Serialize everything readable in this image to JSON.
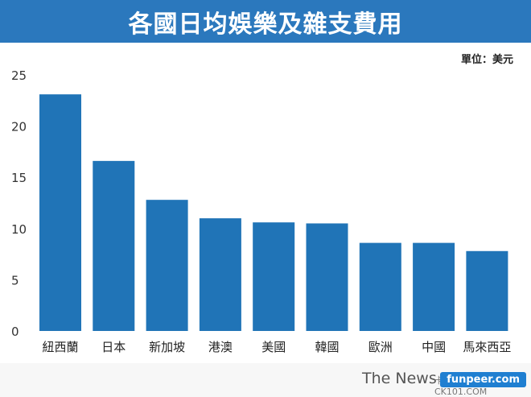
{
  "header": {
    "title": "各國日均娛樂及雜支費用"
  },
  "unit_label": "單位：美元",
  "footer": {
    "brand": "The News",
    "source": "卡提諾論壇 CK101.COM",
    "watermark": "funpeer.com"
  },
  "chart_data": {
    "type": "bar",
    "title": "各國日均娛樂及雜支費用",
    "xlabel": "",
    "ylabel": "",
    "ylim": [
      0,
      25
    ],
    "yticks": [
      0,
      5,
      10,
      15,
      20,
      25
    ],
    "categories": [
      "紐西蘭",
      "日本",
      "新加坡",
      "港澳",
      "美國",
      "韓國",
      "歐洲",
      "中國",
      "馬來西亞"
    ],
    "values": [
      23.1,
      16.6,
      12.8,
      11.0,
      10.6,
      10.5,
      8.6,
      8.6,
      7.8
    ],
    "grid": false,
    "bar_color": "#2074b7"
  }
}
